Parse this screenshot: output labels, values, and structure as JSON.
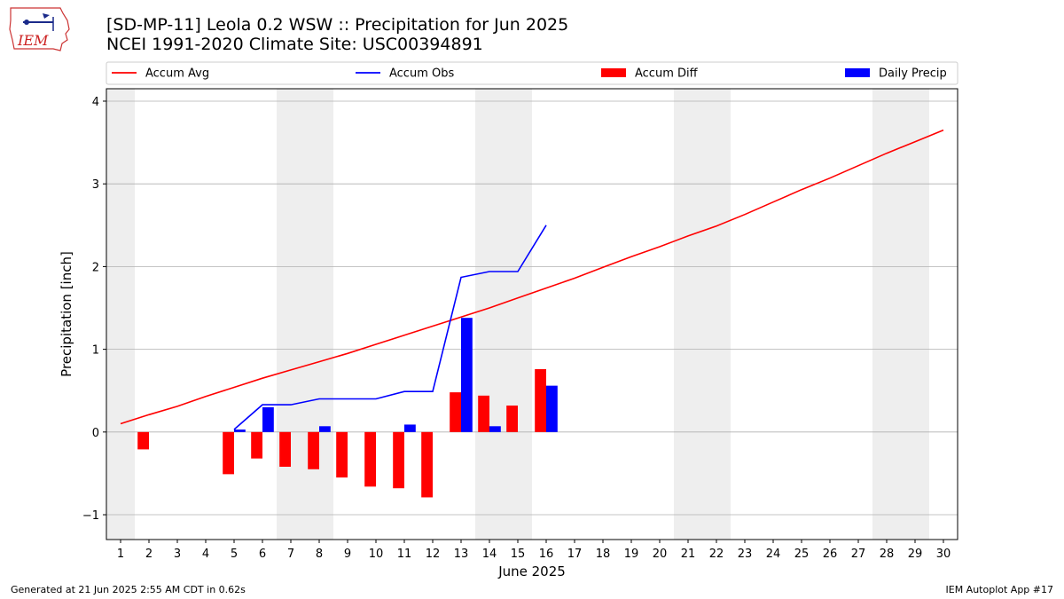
{
  "header": {
    "logo_text": "IEM",
    "title_line1": "[SD-MP-11] Leola 0.2 WSW :: Precipitation for Jun 2025",
    "title_line2": "NCEI 1991-2020 Climate Site: USC00394891"
  },
  "footer": {
    "left": "Generated at 21 Jun 2025 2:55 AM CDT in 0.62s",
    "right": "IEM Autoplot App #17"
  },
  "colors": {
    "accum_avg": "#ff0000",
    "accum_obs": "#0000ff",
    "accum_diff": "#ff0000",
    "daily_precip": "#0000ff",
    "weekend_shade": "#eeeeee",
    "grid": "#b0b0b0"
  },
  "chart_data": {
    "type": "line",
    "xlabel": "June 2025",
    "ylabel": "Precipitation [inch]",
    "ylim": [
      -1.3,
      4.15
    ],
    "xlim": [
      0.5,
      30.5
    ],
    "yticks": [
      -1,
      0,
      1,
      2,
      3,
      4
    ],
    "ytick_labels": [
      "−1",
      "0",
      "1",
      "2",
      "3",
      "4"
    ],
    "days": [
      1,
      2,
      3,
      4,
      5,
      6,
      7,
      8,
      9,
      10,
      11,
      12,
      13,
      14,
      15,
      16,
      17,
      18,
      19,
      20,
      21,
      22,
      23,
      24,
      25,
      26,
      27,
      28,
      29,
      30
    ],
    "grid": "horizontal",
    "legend_position": "top, above plot",
    "weekend_days": [
      1,
      7,
      8,
      14,
      15,
      21,
      22,
      28,
      29
    ],
    "series": [
      {
        "name": "Accum Avg",
        "kind": "line",
        "x": [
          1,
          2,
          3,
          4,
          5,
          6,
          7,
          8,
          9,
          10,
          11,
          12,
          13,
          14,
          15,
          16,
          17,
          18,
          19,
          20,
          21,
          22,
          23,
          24,
          25,
          26,
          27,
          28,
          29,
          30
        ],
        "values": [
          0.1,
          0.21,
          0.31,
          0.43,
          0.54,
          0.65,
          0.75,
          0.85,
          0.95,
          1.06,
          1.17,
          1.28,
          1.39,
          1.5,
          1.62,
          1.74,
          1.86,
          1.99,
          2.12,
          2.24,
          2.37,
          2.49,
          2.63,
          2.78,
          2.93,
          3.07,
          3.22,
          3.37,
          3.51,
          3.65
        ]
      },
      {
        "name": "Accum Obs",
        "kind": "line",
        "x": [
          5,
          6,
          7,
          8,
          9,
          10,
          11,
          12,
          13,
          14,
          15,
          16
        ],
        "values": [
          0.03,
          0.33,
          0.33,
          0.4,
          0.4,
          0.4,
          0.49,
          0.49,
          1.87,
          1.94,
          1.94,
          2.5
        ]
      },
      {
        "name": "Accum Diff",
        "kind": "bar",
        "x": [
          2,
          5,
          6,
          7,
          8,
          9,
          10,
          11,
          12,
          13,
          14,
          15,
          16
        ],
        "values": [
          -0.21,
          -0.51,
          -0.32,
          -0.42,
          -0.45,
          -0.55,
          -0.66,
          -0.68,
          -0.79,
          0.48,
          0.44,
          0.32,
          0.76
        ]
      },
      {
        "name": "Daily Precip",
        "kind": "bar",
        "x": [
          5,
          6,
          8,
          11,
          13,
          14,
          16
        ],
        "values": [
          0.03,
          0.3,
          0.07,
          0.09,
          1.38,
          0.07,
          0.56
        ]
      }
    ]
  }
}
